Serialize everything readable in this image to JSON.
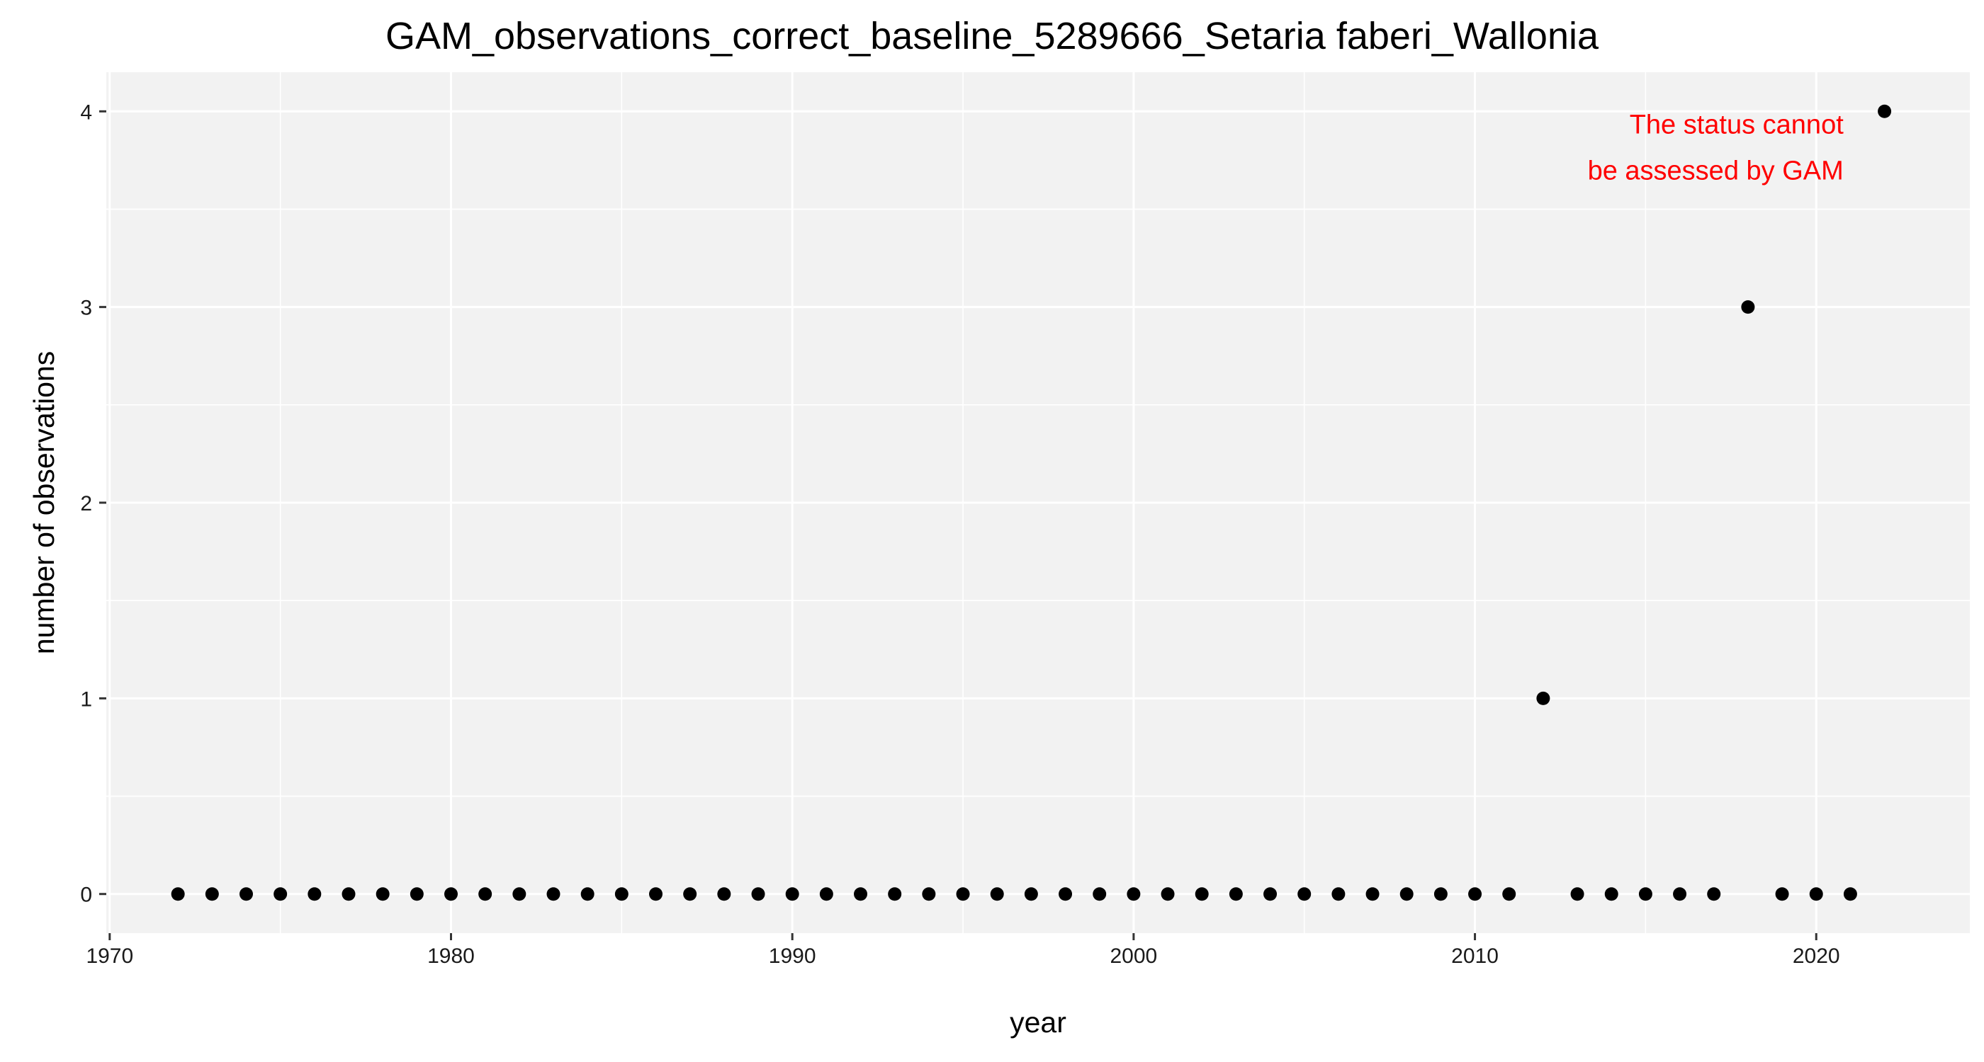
{
  "chart_data": {
    "type": "scatter",
    "title": "GAM_observations_correct_baseline_5289666_Setaria faberi_Wallonia",
    "xlabel": "year",
    "ylabel": "number of observations",
    "xlim": [
      1969.9,
      2024.5
    ],
    "ylim": [
      -0.2,
      4.2
    ],
    "x_ticks": [
      1970,
      1980,
      1990,
      2000,
      2010,
      2020
    ],
    "y_ticks": [
      0,
      1,
      2,
      3,
      4
    ],
    "grid": true,
    "points": [
      {
        "x": 1972,
        "y": 0
      },
      {
        "x": 1973,
        "y": 0
      },
      {
        "x": 1974,
        "y": 0
      },
      {
        "x": 1975,
        "y": 0
      },
      {
        "x": 1976,
        "y": 0
      },
      {
        "x": 1977,
        "y": 0
      },
      {
        "x": 1978,
        "y": 0
      },
      {
        "x": 1979,
        "y": 0
      },
      {
        "x": 1980,
        "y": 0
      },
      {
        "x": 1981,
        "y": 0
      },
      {
        "x": 1982,
        "y": 0
      },
      {
        "x": 1983,
        "y": 0
      },
      {
        "x": 1984,
        "y": 0
      },
      {
        "x": 1985,
        "y": 0
      },
      {
        "x": 1986,
        "y": 0
      },
      {
        "x": 1987,
        "y": 0
      },
      {
        "x": 1988,
        "y": 0
      },
      {
        "x": 1989,
        "y": 0
      },
      {
        "x": 1990,
        "y": 0
      },
      {
        "x": 1991,
        "y": 0
      },
      {
        "x": 1992,
        "y": 0
      },
      {
        "x": 1993,
        "y": 0
      },
      {
        "x": 1994,
        "y": 0
      },
      {
        "x": 1995,
        "y": 0
      },
      {
        "x": 1996,
        "y": 0
      },
      {
        "x": 1997,
        "y": 0
      },
      {
        "x": 1998,
        "y": 0
      },
      {
        "x": 1999,
        "y": 0
      },
      {
        "x": 2000,
        "y": 0
      },
      {
        "x": 2001,
        "y": 0
      },
      {
        "x": 2002,
        "y": 0
      },
      {
        "x": 2003,
        "y": 0
      },
      {
        "x": 2004,
        "y": 0
      },
      {
        "x": 2005,
        "y": 0
      },
      {
        "x": 2006,
        "y": 0
      },
      {
        "x": 2007,
        "y": 0
      },
      {
        "x": 2008,
        "y": 0
      },
      {
        "x": 2009,
        "y": 0
      },
      {
        "x": 2010,
        "y": 0
      },
      {
        "x": 2011,
        "y": 0
      },
      {
        "x": 2012,
        "y": 1
      },
      {
        "x": 2013,
        "y": 0
      },
      {
        "x": 2014,
        "y": 0
      },
      {
        "x": 2015,
        "y": 0
      },
      {
        "x": 2016,
        "y": 0
      },
      {
        "x": 2017,
        "y": 0
      },
      {
        "x": 2018,
        "y": 3
      },
      {
        "x": 2019,
        "y": 0
      },
      {
        "x": 2020,
        "y": 0
      },
      {
        "x": 2021,
        "y": 0
      },
      {
        "x": 2022,
        "y": 4
      }
    ],
    "annotation": {
      "lines": [
        "The status cannot",
        "be assessed by GAM"
      ],
      "color": "#ff0000"
    },
    "colors": {
      "panel_background": "#f2f2f2",
      "grid": "#ffffff",
      "point": "#000000"
    }
  }
}
